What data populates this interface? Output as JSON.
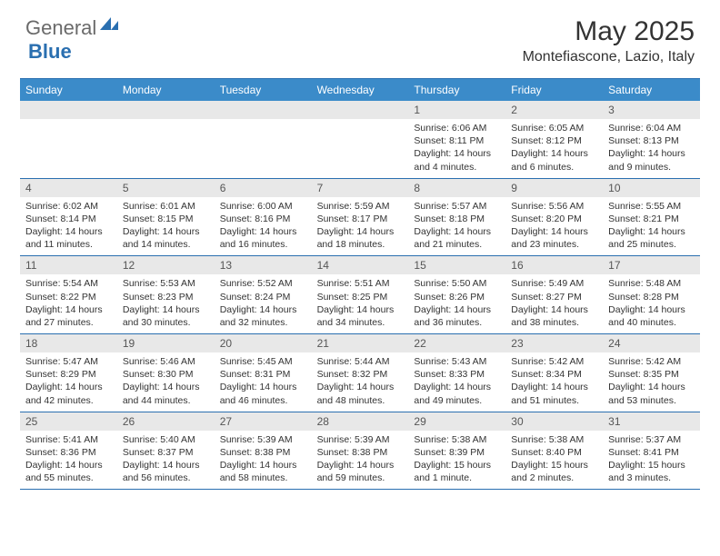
{
  "logo": {
    "general": "General",
    "blue": "Blue"
  },
  "title": "May 2025",
  "location": "Montefiascone, Lazio, Italy",
  "colors": {
    "header_bg": "#3b8bc9",
    "rule": "#2a6fb0",
    "daybar_bg": "#e8e8e8",
    "text": "#333333",
    "logo_gray": "#6a6a6a",
    "logo_blue": "#2a6fb0"
  },
  "weekdays": [
    "Sunday",
    "Monday",
    "Tuesday",
    "Wednesday",
    "Thursday",
    "Friday",
    "Saturday"
  ],
  "weeks": [
    [
      null,
      null,
      null,
      null,
      {
        "d": "1",
        "sr": "6:06 AM",
        "ss": "8:11 PM",
        "dl": "14 hours and 4 minutes."
      },
      {
        "d": "2",
        "sr": "6:05 AM",
        "ss": "8:12 PM",
        "dl": "14 hours and 6 minutes."
      },
      {
        "d": "3",
        "sr": "6:04 AM",
        "ss": "8:13 PM",
        "dl": "14 hours and 9 minutes."
      }
    ],
    [
      {
        "d": "4",
        "sr": "6:02 AM",
        "ss": "8:14 PM",
        "dl": "14 hours and 11 minutes."
      },
      {
        "d": "5",
        "sr": "6:01 AM",
        "ss": "8:15 PM",
        "dl": "14 hours and 14 minutes."
      },
      {
        "d": "6",
        "sr": "6:00 AM",
        "ss": "8:16 PM",
        "dl": "14 hours and 16 minutes."
      },
      {
        "d": "7",
        "sr": "5:59 AM",
        "ss": "8:17 PM",
        "dl": "14 hours and 18 minutes."
      },
      {
        "d": "8",
        "sr": "5:57 AM",
        "ss": "8:18 PM",
        "dl": "14 hours and 21 minutes."
      },
      {
        "d": "9",
        "sr": "5:56 AM",
        "ss": "8:20 PM",
        "dl": "14 hours and 23 minutes."
      },
      {
        "d": "10",
        "sr": "5:55 AM",
        "ss": "8:21 PM",
        "dl": "14 hours and 25 minutes."
      }
    ],
    [
      {
        "d": "11",
        "sr": "5:54 AM",
        "ss": "8:22 PM",
        "dl": "14 hours and 27 minutes."
      },
      {
        "d": "12",
        "sr": "5:53 AM",
        "ss": "8:23 PM",
        "dl": "14 hours and 30 minutes."
      },
      {
        "d": "13",
        "sr": "5:52 AM",
        "ss": "8:24 PM",
        "dl": "14 hours and 32 minutes."
      },
      {
        "d": "14",
        "sr": "5:51 AM",
        "ss": "8:25 PM",
        "dl": "14 hours and 34 minutes."
      },
      {
        "d": "15",
        "sr": "5:50 AM",
        "ss": "8:26 PM",
        "dl": "14 hours and 36 minutes."
      },
      {
        "d": "16",
        "sr": "5:49 AM",
        "ss": "8:27 PM",
        "dl": "14 hours and 38 minutes."
      },
      {
        "d": "17",
        "sr": "5:48 AM",
        "ss": "8:28 PM",
        "dl": "14 hours and 40 minutes."
      }
    ],
    [
      {
        "d": "18",
        "sr": "5:47 AM",
        "ss": "8:29 PM",
        "dl": "14 hours and 42 minutes."
      },
      {
        "d": "19",
        "sr": "5:46 AM",
        "ss": "8:30 PM",
        "dl": "14 hours and 44 minutes."
      },
      {
        "d": "20",
        "sr": "5:45 AM",
        "ss": "8:31 PM",
        "dl": "14 hours and 46 minutes."
      },
      {
        "d": "21",
        "sr": "5:44 AM",
        "ss": "8:32 PM",
        "dl": "14 hours and 48 minutes."
      },
      {
        "d": "22",
        "sr": "5:43 AM",
        "ss": "8:33 PM",
        "dl": "14 hours and 49 minutes."
      },
      {
        "d": "23",
        "sr": "5:42 AM",
        "ss": "8:34 PM",
        "dl": "14 hours and 51 minutes."
      },
      {
        "d": "24",
        "sr": "5:42 AM",
        "ss": "8:35 PM",
        "dl": "14 hours and 53 minutes."
      }
    ],
    [
      {
        "d": "25",
        "sr": "5:41 AM",
        "ss": "8:36 PM",
        "dl": "14 hours and 55 minutes."
      },
      {
        "d": "26",
        "sr": "5:40 AM",
        "ss": "8:37 PM",
        "dl": "14 hours and 56 minutes."
      },
      {
        "d": "27",
        "sr": "5:39 AM",
        "ss": "8:38 PM",
        "dl": "14 hours and 58 minutes."
      },
      {
        "d": "28",
        "sr": "5:39 AM",
        "ss": "8:38 PM",
        "dl": "14 hours and 59 minutes."
      },
      {
        "d": "29",
        "sr": "5:38 AM",
        "ss": "8:39 PM",
        "dl": "15 hours and 1 minute."
      },
      {
        "d": "30",
        "sr": "5:38 AM",
        "ss": "8:40 PM",
        "dl": "15 hours and 2 minutes."
      },
      {
        "d": "31",
        "sr": "5:37 AM",
        "ss": "8:41 PM",
        "dl": "15 hours and 3 minutes."
      }
    ]
  ],
  "labels": {
    "sunrise": "Sunrise: ",
    "sunset": "Sunset: ",
    "daylight": "Daylight: "
  }
}
